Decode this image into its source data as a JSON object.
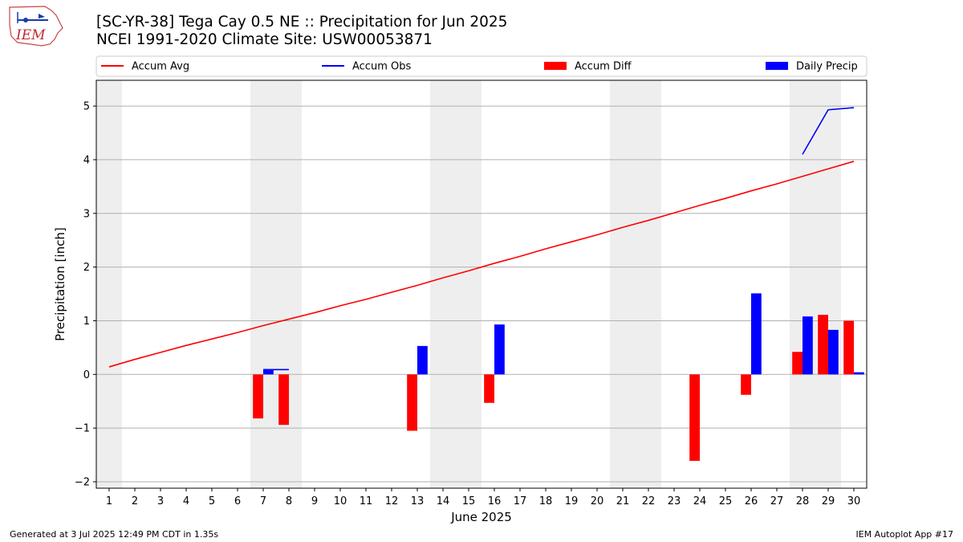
{
  "title": {
    "line1": "[SC-YR-38] Tega Cay 0.5 NE :: Precipitation for Jun 2025",
    "line2": "NCEI 1991-2020 Climate Site: USW00053871"
  },
  "logo": {
    "text": "IEM"
  },
  "footer": {
    "left": "Generated at 3 Jul 2025 12:49 PM CDT in 1.35s",
    "right": "IEM Autoplot App #17"
  },
  "chart_data": {
    "type": "bar",
    "title": "[SC-YR-38] Tega Cay 0.5 NE :: Precipitation for Jun 2025",
    "subtitle": "NCEI 1991-2020 Climate Site: USW00053871",
    "xlabel": "June 2025",
    "ylabel": "Precipitation [inch]",
    "x": [
      1,
      2,
      3,
      4,
      5,
      6,
      7,
      8,
      9,
      10,
      11,
      12,
      13,
      14,
      15,
      16,
      17,
      18,
      19,
      20,
      21,
      22,
      23,
      24,
      25,
      26,
      27,
      28,
      29,
      30
    ],
    "xlim": [
      0.5,
      30.5
    ],
    "ylim": [
      -2.12,
      5.48
    ],
    "yticks": [
      -2,
      -1,
      0,
      1,
      2,
      3,
      4,
      5
    ],
    "grid": "horizontal",
    "legend_position": "top",
    "weekend_shading": [
      1,
      7,
      8,
      14,
      15,
      21,
      22,
      28,
      29
    ],
    "colors": {
      "accum_avg": "#ff0000",
      "accum_obs": "#0000ff",
      "accum_diff": "#ff0000",
      "daily_precip": "#0000ff",
      "shade": "#eeeeee",
      "grid": "#b0b0b0"
    },
    "series": [
      {
        "name": "Accum Avg",
        "kind": "line",
        "values": [
          0.14,
          0.28,
          0.41,
          0.54,
          0.66,
          0.78,
          0.91,
          1.03,
          1.15,
          1.28,
          1.4,
          1.53,
          1.66,
          1.8,
          1.93,
          2.07,
          2.2,
          2.34,
          2.47,
          2.6,
          2.74,
          2.87,
          3.01,
          3.15,
          3.28,
          3.42,
          3.55,
          3.69,
          3.83,
          3.97
        ]
      },
      {
        "name": "Accum Obs",
        "kind": "line",
        "values": [
          null,
          null,
          null,
          null,
          null,
          null,
          0.09,
          0.09,
          null,
          null,
          null,
          null,
          null,
          null,
          null,
          null,
          null,
          null,
          null,
          null,
          null,
          null,
          null,
          null,
          null,
          null,
          null,
          4.1,
          4.93,
          4.97
        ]
      },
      {
        "name": "Accum Diff",
        "kind": "bar",
        "values": [
          null,
          null,
          null,
          null,
          null,
          null,
          -0.82,
          -0.94,
          null,
          null,
          null,
          null,
          -1.05,
          null,
          null,
          -0.53,
          null,
          null,
          null,
          null,
          null,
          null,
          null,
          -1.61,
          null,
          -0.38,
          null,
          0.42,
          1.11,
          1.0
        ]
      },
      {
        "name": "Daily Precip",
        "kind": "bar",
        "values": [
          null,
          null,
          null,
          null,
          null,
          null,
          0.09,
          null,
          null,
          null,
          null,
          null,
          0.53,
          null,
          null,
          0.93,
          null,
          null,
          null,
          null,
          null,
          null,
          null,
          null,
          null,
          1.51,
          null,
          1.08,
          0.83,
          0.04
        ]
      }
    ]
  }
}
